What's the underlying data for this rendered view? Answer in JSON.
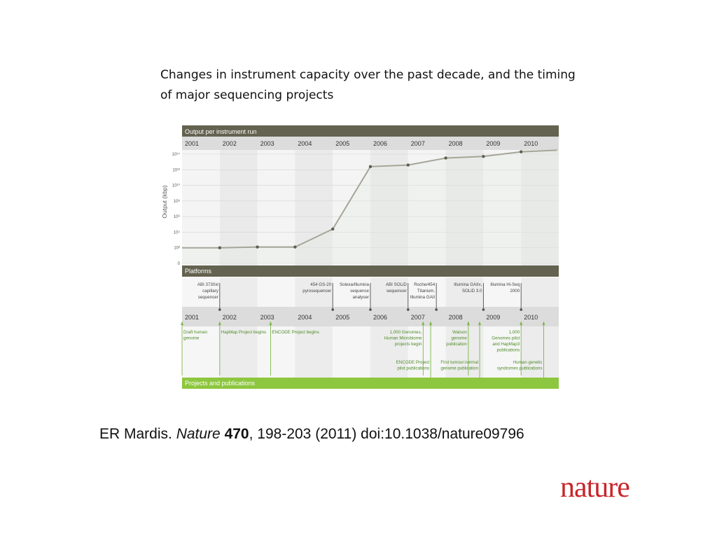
{
  "slide": {
    "title": "Changes in instrument capacity over the past decade, and the timing of major sequencing projects",
    "citation": {
      "author": "ER Mardis.",
      "journal": "Nature",
      "volume": "470",
      "rest": ", 198-203 (2011) doi:10.1038/nature09796"
    },
    "logo": "nature"
  },
  "colors": {
    "header_dark": "#646250",
    "header_green": "#8dc63f",
    "year_band": "#dcdcdc",
    "line": "#a5a698",
    "point": "#5e5e52",
    "platform_tick": "#4f4f4f",
    "project_tick": "#7ab648",
    "project_text": "#4e8c27"
  },
  "chart_data": {
    "type": "line",
    "title": "Output per instrument run",
    "ylabel": "Output (kbp)",
    "x_years": [
      "2001",
      "2002",
      "2003",
      "2004",
      "2005",
      "2006",
      "2007",
      "2008",
      "2009",
      "2010"
    ],
    "y_tick_labels": [
      "0",
      "10²",
      "10⁴",
      "10⁶",
      "10⁸",
      "10¹⁰",
      "10¹²",
      "10¹⁴"
    ],
    "y_scale": "log",
    "ylim": [
      0,
      14
    ],
    "series": [
      {
        "x": [
          2001.0,
          2002.0,
          2003.0,
          2004.0,
          2005.0,
          2006.0,
          2007.0,
          2008.0,
          2009.0,
          2010.0,
          2010.96
        ],
        "y_exp": [
          2.0,
          2.0,
          2.1,
          2.1,
          4.4,
          12.4,
          12.6,
          13.5,
          13.7,
          14.3,
          14.5
        ],
        "markers": [
          false,
          true,
          true,
          true,
          true,
          true,
          true,
          true,
          true,
          true,
          false
        ]
      }
    ],
    "platforms_header": "Platforms",
    "platforms": [
      {
        "x": 2002.0,
        "lines": [
          "ABI 3730xl",
          "capillary",
          "sequencer"
        ]
      },
      {
        "x": 2005.0,
        "lines": [
          "454 GS-20",
          "pyrosequencer"
        ]
      },
      {
        "x": 2006.0,
        "lines": [
          "Solexa/Illumina",
          "sequence",
          "analyser"
        ]
      },
      {
        "x": 2007.0,
        "lines": [
          "ABI SOLiD",
          "sequencer"
        ]
      },
      {
        "x": 2007.75,
        "lines": [
          "Roche/454",
          "Titanium,",
          "Illumina GAII"
        ]
      },
      {
        "x": 2009.0,
        "lines": [
          "Illumina GAIIx,",
          "SOLiD 3.0"
        ]
      },
      {
        "x": 2010.0,
        "lines": [
          "Illumina Hi-Seq",
          "2000"
        ]
      }
    ],
    "projects_header": "Projects and publications",
    "projects": [
      {
        "x": 2001.0,
        "lines": [
          "Draft human",
          "genome"
        ],
        "row": 0,
        "side": "right"
      },
      {
        "x": 2002.0,
        "lines": [
          "HapMap Project begins"
        ],
        "row": 0,
        "side": "right"
      },
      {
        "x": 2003.35,
        "lines": [
          "ENCODE Project begins"
        ],
        "row": 0,
        "side": "right"
      },
      {
        "x": 2007.4,
        "lines": [
          "1,000 Genomes,",
          "Human Microbiome",
          "projects begin"
        ],
        "row": 0,
        "side": "left"
      },
      {
        "x": 2007.6,
        "lines": [
          "ENCODE Project",
          "pilot publications"
        ],
        "row": 1,
        "side": "left"
      },
      {
        "x": 2008.6,
        "lines": [
          "Watson",
          "genome",
          "publication"
        ],
        "row": 0,
        "side": "left"
      },
      {
        "x": 2008.9,
        "lines": [
          "First tumour:normal",
          "genome publication"
        ],
        "row": 1,
        "side": "left"
      },
      {
        "x": 2010.0,
        "lines": [
          "1,000",
          "Genomes pilot",
          "and HapMap3",
          "publications"
        ],
        "row": 0,
        "side": "left"
      },
      {
        "x": 2010.6,
        "lines": [
          "Human genetic",
          "syndromes publications"
        ],
        "row": 1,
        "side": "left"
      }
    ]
  }
}
